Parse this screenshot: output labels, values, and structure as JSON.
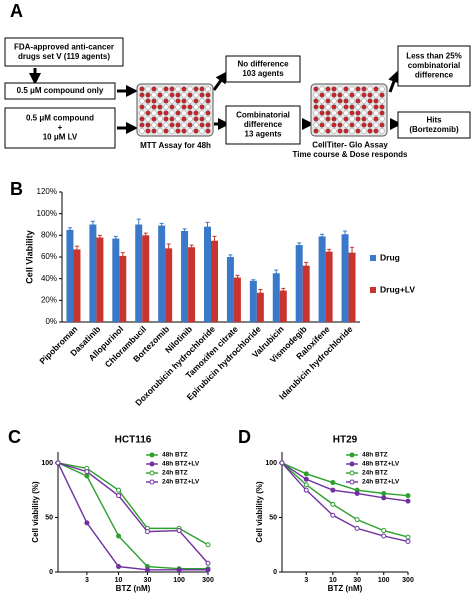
{
  "panels": [
    "A",
    "B",
    "C",
    "D"
  ],
  "diagram": {
    "nodes": [
      {
        "lines": [
          "FDA-approved anti-cancer",
          "drugs set V (119 agents)"
        ]
      },
      {
        "lines": [
          "0.5 μM compound only"
        ]
      },
      {
        "lines": [
          "0.5 μM compound",
          "+",
          "10 μM LV"
        ]
      },
      {
        "lines": [
          "No difference",
          "103 agents"
        ]
      },
      {
        "lines": [
          "Combinatorial",
          "difference",
          "13 agents"
        ]
      },
      {
        "lines": [
          "Less than 25%",
          "combinatorial",
          "difference"
        ]
      },
      {
        "lines": [
          "Hits",
          "(Bortezomib)"
        ]
      },
      {
        "lines": [
          "MTT Assay for 48h"
        ]
      },
      {
        "lines": [
          "CellTiter- Glo Assay",
          "Time course & Dose responds"
        ]
      }
    ]
  },
  "chart_data": [
    {
      "type": "bar",
      "ylabel": "Cell Viability",
      "categories": [
        "Pipobroman",
        "Dasatinib",
        "Allopurinol",
        "Chlorambucil",
        "Bortezomib",
        "Nilotinib",
        "Doxorubicin hydrochloride",
        "Tamoxifen citrate",
        "Epirubicin hydrochloride",
        "Valrubicin",
        "Vismodegib",
        "Raloxifene",
        "Idarubicin hydrochloride"
      ],
      "series": [
        {
          "name": "Drug",
          "color": "#3a78c9",
          "values": [
            85,
            90,
            77,
            90,
            89,
            84,
            88,
            60,
            38,
            45,
            71,
            79,
            81
          ],
          "errors": [
            2,
            3,
            2,
            5,
            2,
            2,
            4,
            2,
            1,
            3,
            2,
            2,
            3
          ]
        },
        {
          "name": "Drug+LV",
          "color": "#c8342f",
          "values": [
            67,
            78,
            61,
            80,
            68,
            69,
            75,
            41,
            27,
            29,
            52,
            65,
            64
          ],
          "errors": [
            3,
            2,
            3,
            2,
            4,
            2,
            4,
            2,
            3,
            2,
            3,
            2,
            5
          ]
        }
      ],
      "ylim": [
        0,
        120
      ],
      "yticks": [
        {
          "value": 0,
          "label": "0%"
        },
        {
          "value": 20,
          "label": "20%"
        },
        {
          "value": 40,
          "label": "40%"
        },
        {
          "value": 60,
          "label": "60%"
        },
        {
          "value": 80,
          "label": "80%"
        },
        {
          "value": 100,
          "label": "100%"
        },
        {
          "value": 120,
          "label": "120%"
        }
      ],
      "legend": "right"
    },
    {
      "type": "line",
      "title": "HCT116",
      "xlabel": "BTZ (nM)",
      "ylabel": "Cell viability (%)",
      "xscale": "log",
      "x": [
        1,
        3,
        10,
        30,
        100,
        300
      ],
      "xlim": [
        1,
        300
      ],
      "xticks": [
        3,
        10,
        30,
        100,
        300
      ],
      "ylim": [
        0,
        110
      ],
      "yticks": [
        0,
        50,
        100
      ],
      "series": [
        {
          "name": "48h BTZ",
          "color": "#2ca02c",
          "values": [
            100,
            88,
            33,
            5,
            3,
            3
          ]
        },
        {
          "name": "48h BTZ+LV",
          "color": "#7030a0",
          "values": [
            100,
            45,
            5,
            2,
            2,
            2
          ]
        },
        {
          "name": "24h BTZ",
          "color": "#2ca02c",
          "values": [
            100,
            95,
            75,
            40,
            40,
            25
          ]
        },
        {
          "name": "24h BTZ+LV",
          "color": "#7030a0",
          "values": [
            100,
            92,
            70,
            37,
            38,
            8
          ]
        }
      ]
    },
    {
      "type": "line",
      "title": "HT29",
      "xlabel": "BTZ (nM)",
      "ylabel": "Cell viability (%)",
      "xscale": "log",
      "x": [
        1,
        3,
        10,
        30,
        100,
        300
      ],
      "xlim": [
        1,
        300
      ],
      "xticks": [
        3,
        10,
        30,
        100,
        300
      ],
      "ylim": [
        0,
        110
      ],
      "yticks": [
        0,
        50,
        100
      ],
      "series": [
        {
          "name": "48h BTZ",
          "color": "#2ca02c",
          "values": [
            100,
            90,
            82,
            75,
            72,
            70
          ]
        },
        {
          "name": "48h BTZ+LV",
          "color": "#7030a0",
          "values": [
            100,
            85,
            75,
            72,
            68,
            65
          ]
        },
        {
          "name": "24h BTZ",
          "color": "#2ca02c",
          "values": [
            100,
            80,
            62,
            48,
            38,
            32
          ]
        },
        {
          "name": "24h BTZ+LV",
          "color": "#7030a0",
          "values": [
            100,
            75,
            52,
            40,
            33,
            28
          ]
        }
      ]
    }
  ]
}
